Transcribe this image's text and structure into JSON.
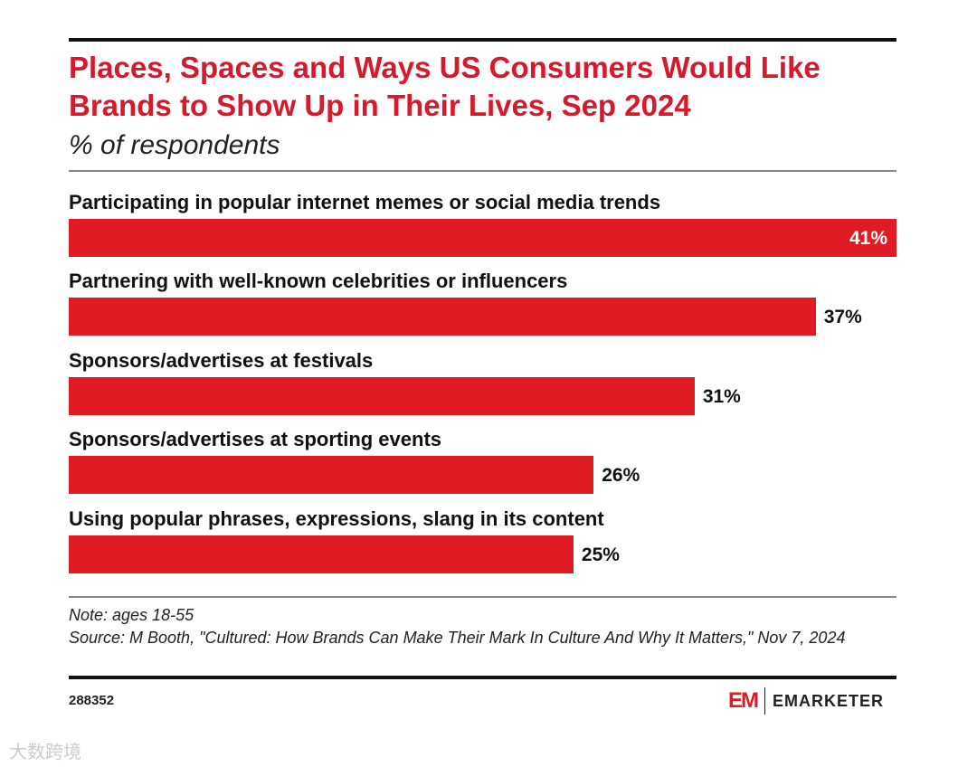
{
  "chart_data": {
    "type": "bar",
    "orientation": "horizontal",
    "title": "Places, Spaces and Ways US Consumers Would Like Brands to Show Up in Their Lives, Sep 2024",
    "subtitle": "% of respondents",
    "categories": [
      "Participating in popular internet memes or social media trends",
      "Partnering with well-known celebrities or influencers",
      "Sponsors/advertises at festivals",
      "Sponsors/advertises at sporting events",
      "Using popular phrases, expressions, slang in its content"
    ],
    "values": [
      41,
      37,
      31,
      26,
      25
    ],
    "value_labels": [
      "41%",
      "37%",
      "31%",
      "26%",
      "25%"
    ],
    "xlim": [
      0,
      41
    ],
    "bar_color": "#e01b23",
    "grid": false
  },
  "note": "Note: ages 18-55",
  "source": "Source: M Booth, \"Cultured: How Brands Can Make Their Mark In Culture And Why It Matters,\" Nov 7, 2024",
  "chart_id": "288352",
  "logo": {
    "mark": "EM",
    "brand": "EMARKETER"
  },
  "watermark": "大数跨境"
}
